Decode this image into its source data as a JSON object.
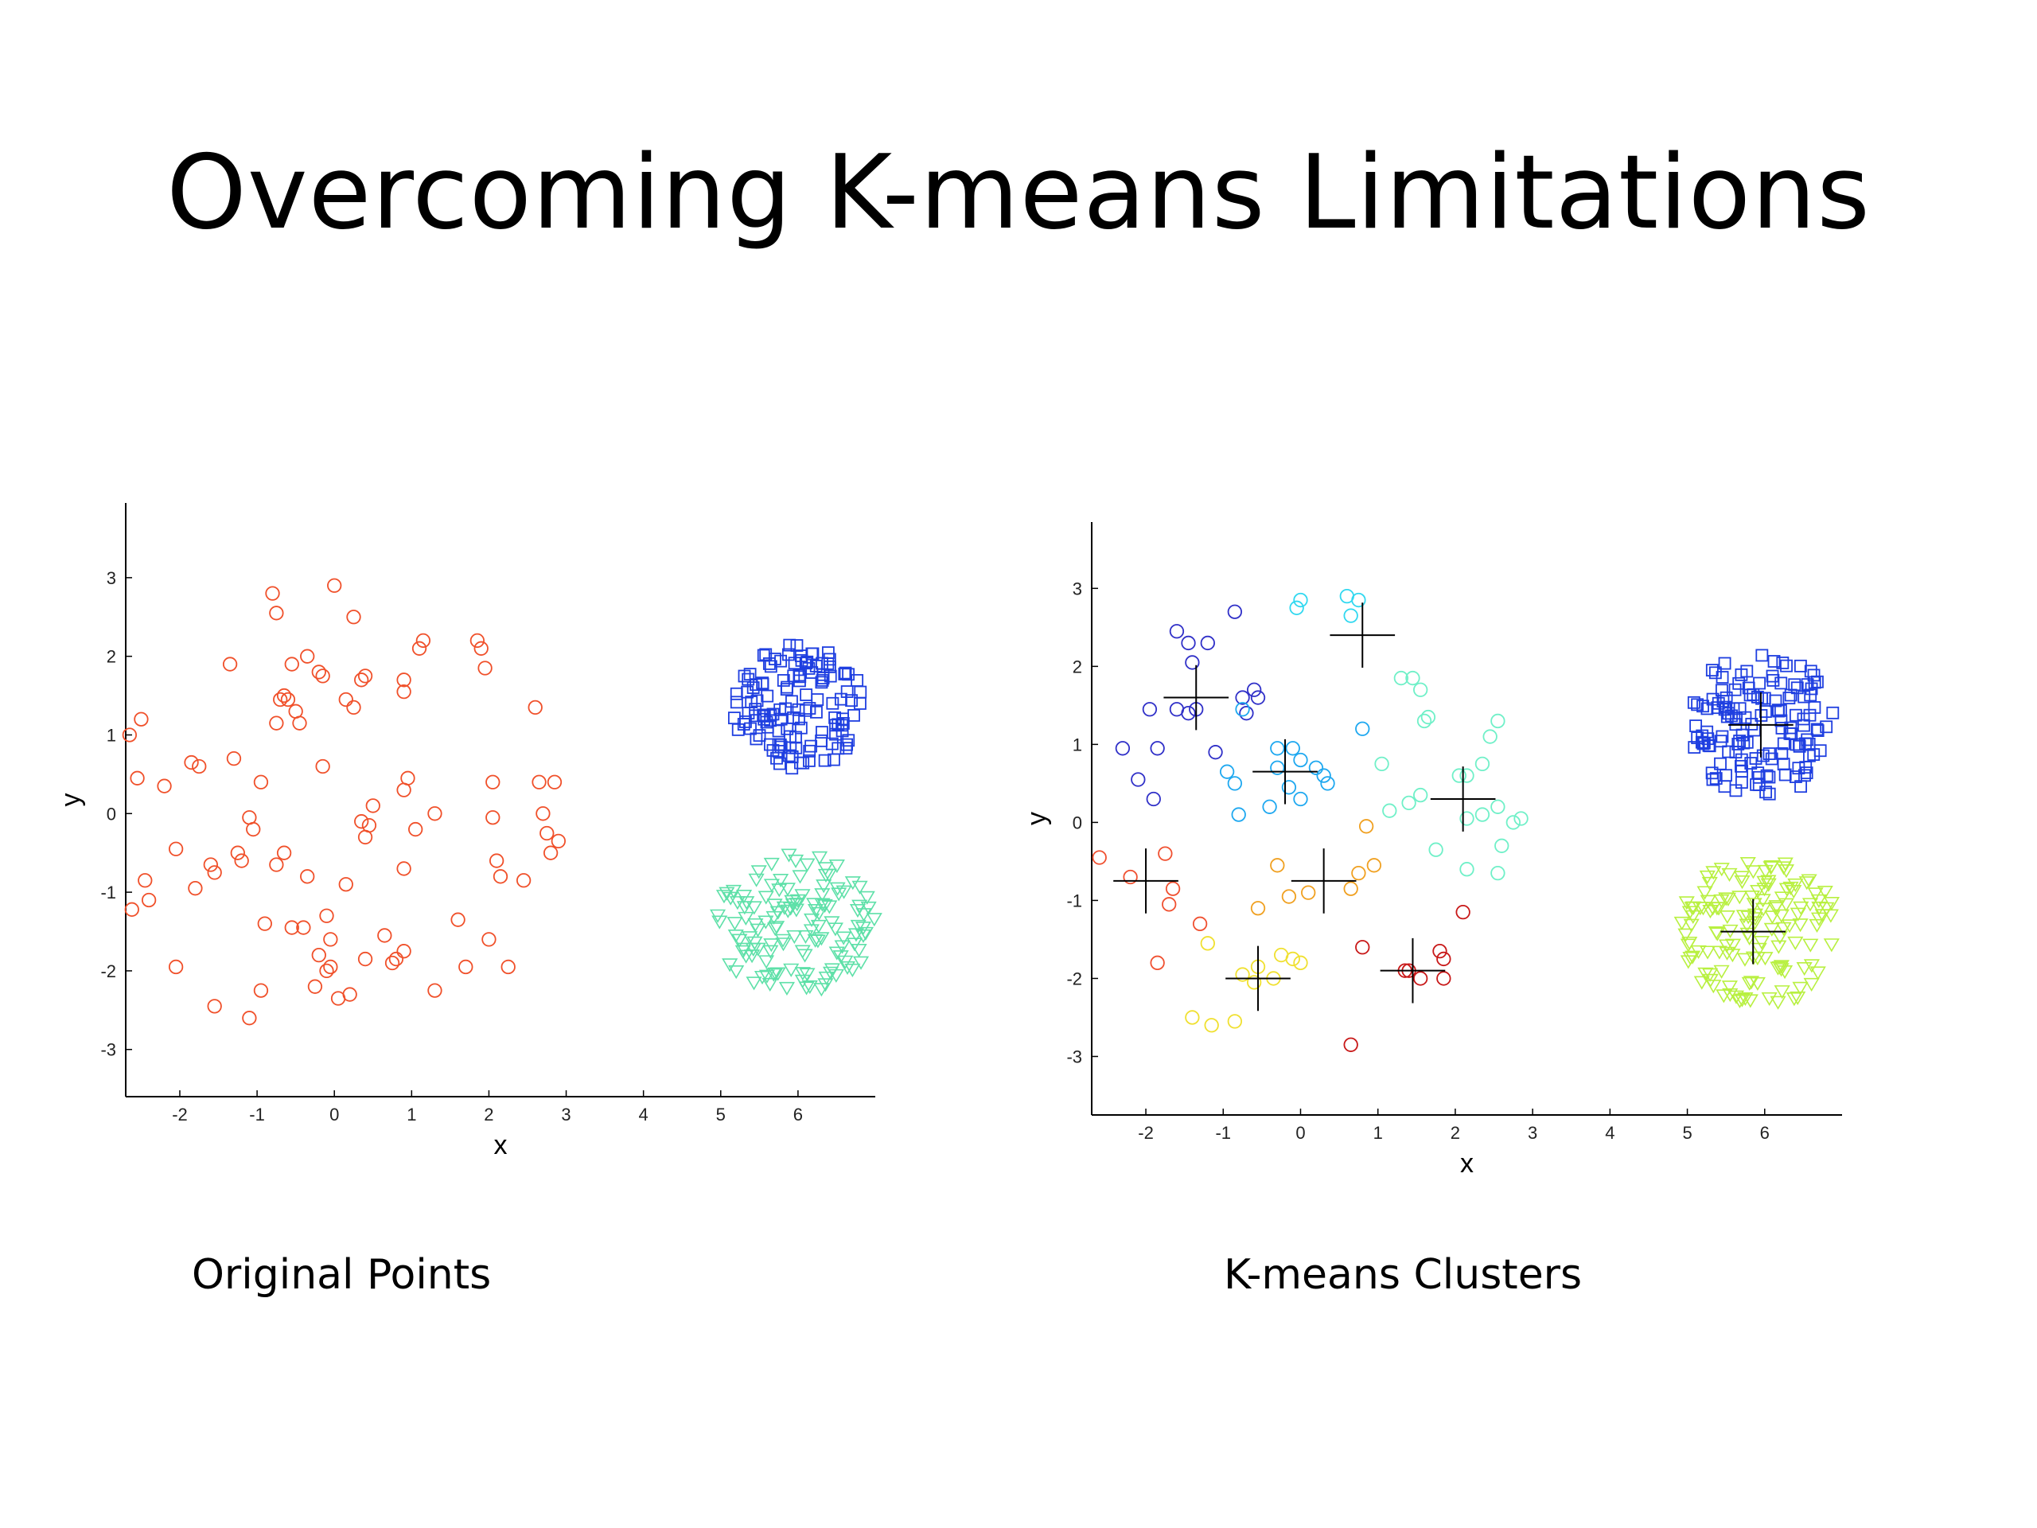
{
  "slide": {
    "title": "Overcoming K-means Limitations",
    "captions": {
      "left": "Original Points",
      "right": "K-means Clusters"
    }
  },
  "chart_data": [
    {
      "type": "scatter",
      "title": "",
      "xlabel": "x",
      "ylabel": "y",
      "xlim": [
        -2.7,
        7.0
      ],
      "ylim": [
        -3.6,
        3.95
      ],
      "xticks": [
        -2,
        -1,
        0,
        1,
        2,
        3,
        4,
        5,
        6
      ],
      "yticks": [
        -3,
        -2,
        -1,
        0,
        1,
        2,
        3
      ],
      "series": [
        {
          "marker": "circle",
          "color": "#f0502a",
          "size": 0.085,
          "points": [
            [
              -2.65,
              1.0
            ],
            [
              -2.5,
              1.2
            ],
            [
              -2.55,
              0.45
            ],
            [
              -2.45,
              -0.85
            ],
            [
              -2.4,
              -1.1
            ],
            [
              -2.62,
              -1.22
            ],
            [
              -2.2,
              0.35
            ],
            [
              -2.05,
              -0.45
            ],
            [
              -1.85,
              0.65
            ],
            [
              -1.75,
              0.6
            ],
            [
              -1.6,
              -0.65
            ],
            [
              -1.55,
              -0.75
            ],
            [
              -1.8,
              -0.95
            ],
            [
              -2.05,
              -1.95
            ],
            [
              -1.55,
              -2.45
            ],
            [
              -1.35,
              1.9
            ],
            [
              -1.3,
              0.7
            ],
            [
              -1.25,
              -0.5
            ],
            [
              -1.2,
              -0.6
            ],
            [
              -1.1,
              -0.05
            ],
            [
              -1.05,
              -0.2
            ],
            [
              -0.95,
              0.4
            ],
            [
              -0.8,
              2.8
            ],
            [
              -0.75,
              2.55
            ],
            [
              -0.7,
              1.45
            ],
            [
              -0.65,
              1.5
            ],
            [
              -0.6,
              1.45
            ],
            [
              -0.55,
              1.9
            ],
            [
              -0.5,
              1.3
            ],
            [
              -0.45,
              1.15
            ],
            [
              -0.75,
              1.15
            ],
            [
              -0.65,
              -0.5
            ],
            [
              -0.75,
              -0.65
            ],
            [
              -0.35,
              2.0
            ],
            [
              -0.2,
              1.8
            ],
            [
              -0.15,
              1.75
            ],
            [
              -0.15,
              0.6
            ],
            [
              -0.35,
              -0.8
            ],
            [
              -0.4,
              -1.45
            ],
            [
              -0.55,
              -1.45
            ],
            [
              -0.9,
              -1.4
            ],
            [
              -0.95,
              -2.25
            ],
            [
              -1.1,
              -2.6
            ],
            [
              -0.2,
              -1.8
            ],
            [
              -0.1,
              -1.3
            ],
            [
              -0.05,
              -1.6
            ],
            [
              -0.05,
              -1.95
            ],
            [
              -0.1,
              -2.0
            ],
            [
              -0.25,
              -2.2
            ],
            [
              0.0,
              2.9
            ],
            [
              0.15,
              1.45
            ],
            [
              0.25,
              2.5
            ],
            [
              0.25,
              1.35
            ],
            [
              0.35,
              1.7
            ],
            [
              0.4,
              1.75
            ],
            [
              0.15,
              -0.9
            ],
            [
              0.35,
              -0.1
            ],
            [
              0.45,
              -0.15
            ],
            [
              0.4,
              -0.3
            ],
            [
              0.5,
              0.1
            ],
            [
              0.4,
              -1.85
            ],
            [
              0.65,
              -1.55
            ],
            [
              0.75,
              -1.9
            ],
            [
              0.8,
              -1.85
            ],
            [
              0.9,
              -1.75
            ],
            [
              0.2,
              -2.3
            ],
            [
              0.05,
              -2.35
            ],
            [
              0.9,
              1.7
            ],
            [
              0.9,
              1.55
            ],
            [
              0.9,
              0.3
            ],
            [
              0.95,
              0.45
            ],
            [
              0.9,
              -0.7
            ],
            [
              1.05,
              -0.2
            ],
            [
              1.1,
              2.1
            ],
            [
              1.15,
              2.2
            ],
            [
              1.3,
              0.0
            ],
            [
              1.3,
              -2.25
            ],
            [
              1.6,
              -1.35
            ],
            [
              1.7,
              -1.95
            ],
            [
              1.85,
              2.2
            ],
            [
              1.9,
              2.1
            ],
            [
              1.95,
              1.85
            ],
            [
              2.0,
              -1.6
            ],
            [
              2.05,
              0.4
            ],
            [
              2.05,
              -0.05
            ],
            [
              2.1,
              -0.6
            ],
            [
              2.15,
              -0.8
            ],
            [
              2.25,
              -1.95
            ],
            [
              2.45,
              -0.85
            ],
            [
              2.6,
              1.35
            ],
            [
              2.65,
              0.4
            ],
            [
              2.7,
              0.0
            ],
            [
              2.75,
              -0.25
            ],
            [
              2.8,
              -0.5
            ],
            [
              2.85,
              0.4
            ],
            [
              2.9,
              -0.35
            ]
          ]
        },
        {
          "marker": "square",
          "color": "#1f3fe0",
          "size": 0.085,
          "cluster": {
            "cx": 6.0,
            "cy": 1.35,
            "rx": 0.85,
            "ry": 0.8,
            "n": 130,
            "seed": 7
          }
        },
        {
          "marker": "triangle",
          "color": "#5ee0a8",
          "size": 0.085,
          "cluster": {
            "cx": 5.95,
            "cy": -1.4,
            "rx": 1.05,
            "ry": 0.9,
            "n": 130,
            "seed": 11
          }
        }
      ]
    },
    {
      "type": "scatter",
      "title": "",
      "xlabel": "x",
      "ylabel": "y",
      "xlim": [
        -2.7,
        7.0
      ],
      "ylim": [
        -3.75,
        3.85
      ],
      "xticks": [
        -2,
        -1,
        0,
        1,
        2,
        3,
        4,
        5,
        6
      ],
      "yticks": [
        -3,
        -2,
        -1,
        0,
        1,
        2,
        3
      ],
      "series": [
        {
          "marker": "circle",
          "color": "#3030c8",
          "size": 0.085,
          "points": [
            [
              -1.6,
              2.45
            ],
            [
              -1.45,
              2.3
            ],
            [
              -1.4,
              2.05
            ],
            [
              -1.2,
              2.3
            ],
            [
              -0.85,
              2.7
            ],
            [
              -0.75,
              1.6
            ],
            [
              -0.6,
              1.7
            ],
            [
              -0.55,
              1.6
            ],
            [
              -0.7,
              1.4
            ],
            [
              -1.35,
              1.45
            ],
            [
              -1.45,
              1.4
            ],
            [
              -1.6,
              1.45
            ],
            [
              -1.95,
              1.45
            ],
            [
              -2.3,
              0.95
            ],
            [
              -1.85,
              0.95
            ],
            [
              -2.1,
              0.55
            ],
            [
              -1.1,
              0.9
            ],
            [
              -1.9,
              0.3
            ]
          ]
        },
        {
          "marker": "circle",
          "color": "#1ea8f0",
          "size": 0.085,
          "points": [
            [
              -0.75,
              1.45
            ],
            [
              -0.95,
              0.65
            ],
            [
              -0.85,
              0.5
            ],
            [
              -0.3,
              0.95
            ],
            [
              -0.3,
              0.7
            ],
            [
              -0.1,
              0.95
            ],
            [
              0.0,
              0.8
            ],
            [
              0.2,
              0.7
            ],
            [
              0.3,
              0.6
            ],
            [
              0.35,
              0.5
            ],
            [
              -0.15,
              0.45
            ],
            [
              -0.4,
              0.2
            ],
            [
              0.0,
              0.3
            ],
            [
              -0.8,
              0.1
            ],
            [
              0.8,
              1.2
            ]
          ]
        },
        {
          "marker": "circle",
          "color": "#30d8f0",
          "size": 0.085,
          "points": [
            [
              0.6,
              2.9
            ],
            [
              0.75,
              2.85
            ],
            [
              0.65,
              2.65
            ],
            [
              0.0,
              2.85
            ],
            [
              -0.05,
              2.75
            ]
          ]
        },
        {
          "marker": "circle",
          "color": "#70f0c8",
          "size": 0.085,
          "points": [
            [
              1.3,
              1.85
            ],
            [
              1.45,
              1.85
            ],
            [
              1.55,
              1.7
            ],
            [
              1.6,
              1.3
            ],
            [
              1.65,
              1.35
            ],
            [
              1.05,
              0.75
            ],
            [
              1.15,
              0.15
            ],
            [
              1.4,
              0.25
            ],
            [
              1.55,
              0.35
            ],
            [
              1.75,
              -0.35
            ],
            [
              2.05,
              0.6
            ],
            [
              2.15,
              0.6
            ],
            [
              2.35,
              0.75
            ],
            [
              2.45,
              1.1
            ],
            [
              2.55,
              1.3
            ],
            [
              2.55,
              0.2
            ],
            [
              2.35,
              0.1
            ],
            [
              2.15,
              0.05
            ],
            [
              2.75,
              0.0
            ],
            [
              2.85,
              0.05
            ],
            [
              2.6,
              -0.3
            ],
            [
              2.15,
              -0.6
            ],
            [
              2.55,
              -0.65
            ]
          ]
        },
        {
          "marker": "circle",
          "color": "#f0a020",
          "size": 0.085,
          "points": [
            [
              0.85,
              -0.05
            ],
            [
              0.95,
              -0.55
            ],
            [
              0.75,
              -0.65
            ],
            [
              0.65,
              -0.85
            ],
            [
              -0.3,
              -0.55
            ],
            [
              -0.15,
              -0.95
            ],
            [
              0.1,
              -0.9
            ],
            [
              -0.55,
              -1.1
            ]
          ]
        },
        {
          "marker": "circle",
          "color": "#f0e030",
          "size": 0.085,
          "points": [
            [
              -1.2,
              -1.55
            ],
            [
              -0.75,
              -1.95
            ],
            [
              -0.6,
              -2.05
            ],
            [
              -0.55,
              -1.85
            ],
            [
              -0.25,
              -1.7
            ],
            [
              -0.1,
              -1.75
            ],
            [
              0.0,
              -1.8
            ],
            [
              -0.35,
              -2.0
            ],
            [
              -1.4,
              -2.5
            ],
            [
              -1.15,
              -2.6
            ],
            [
              -0.85,
              -2.55
            ]
          ]
        },
        {
          "marker": "circle",
          "color": "#f05030",
          "size": 0.085,
          "points": [
            [
              -2.6,
              -0.45
            ],
            [
              -2.2,
              -0.7
            ],
            [
              -1.65,
              -0.85
            ],
            [
              -1.7,
              -1.05
            ],
            [
              -1.75,
              -0.4
            ],
            [
              -1.3,
              -1.3
            ],
            [
              -1.85,
              -1.8
            ]
          ]
        },
        {
          "marker": "circle",
          "color": "#c81818",
          "size": 0.085,
          "points": [
            [
              2.1,
              -1.15
            ],
            [
              0.8,
              -1.6
            ],
            [
              1.35,
              -1.9
            ],
            [
              1.4,
              -1.9
            ],
            [
              1.55,
              -2.0
            ],
            [
              1.8,
              -1.65
            ],
            [
              1.85,
              -1.75
            ],
            [
              1.85,
              -2.0
            ],
            [
              0.65,
              -2.85
            ]
          ]
        },
        {
          "marker": "square",
          "color": "#1f3fe0",
          "size": 0.085,
          "cluster": {
            "cx": 5.95,
            "cy": 1.25,
            "rx": 0.95,
            "ry": 0.95,
            "n": 140,
            "seed": 19
          }
        },
        {
          "marker": "triangle",
          "color": "#b8f040",
          "size": 0.085,
          "cluster": {
            "cx": 5.95,
            "cy": -1.4,
            "rx": 1.05,
            "ry": 0.95,
            "n": 140,
            "seed": 23
          }
        }
      ],
      "centroids": [
        [
          -1.35,
          1.6
        ],
        [
          0.8,
          2.4
        ],
        [
          -0.2,
          0.65
        ],
        [
          2.1,
          0.3
        ],
        [
          0.3,
          -0.75
        ],
        [
          -2.0,
          -0.75
        ],
        [
          -0.55,
          -2.0
        ],
        [
          1.45,
          -1.9
        ],
        [
          5.95,
          1.25
        ],
        [
          5.85,
          -1.4
        ]
      ]
    }
  ]
}
